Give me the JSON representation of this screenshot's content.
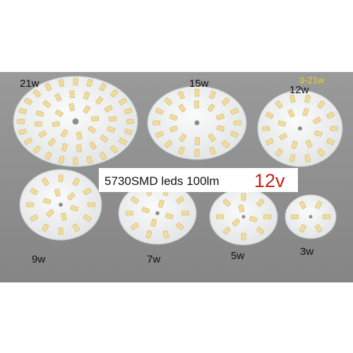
{
  "boards": [
    {
      "label": "21w"
    },
    {
      "label": "15w"
    },
    {
      "label": "12w"
    },
    {
      "label": "9w"
    },
    {
      "label": "7w"
    },
    {
      "label": "5w"
    },
    {
      "label": "3w"
    }
  ],
  "range_label": "3-21w",
  "banner": {
    "text": "5730SMD leds 100lm",
    "voltage": "12v"
  }
}
